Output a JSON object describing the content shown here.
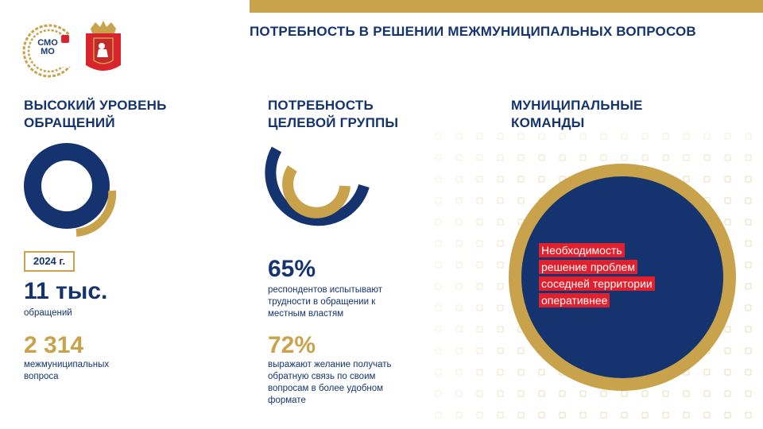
{
  "header": {
    "title": "ПОТРЕБНОСТЬ В РЕШЕНИИ МЕЖМУНИЦИПАЛЬНЫХ ВОПРОСОВ"
  },
  "logo": {
    "text": "СМО МО"
  },
  "colors": {
    "navy": "#15346f",
    "gold": "#c9a24c",
    "red": "#e0202c"
  },
  "col1": {
    "title_line1": "ВЫСОКИЙ УРОВЕНЬ",
    "title_line2": "ОБРАЩЕНИЙ",
    "year": "2024 г.",
    "value1": "11 тыс.",
    "label1": "обращений",
    "value2": "2 314",
    "label2_line1": "межмуниципальных",
    "label2_line2": "вопроса"
  },
  "col2": {
    "title_line1": "ПОТРЕБНОСТЬ",
    "title_line2": "ЦЕЛЕВОЙ ГРУППЫ",
    "value1": "65%",
    "label1_line1": "респондентов испытывают",
    "label1_line2": "трудности в обращении к",
    "label1_line3": "местным властям",
    "value2": "72%",
    "label2_line1": "выражают желание получать",
    "label2_line2": "обратную связь по своим",
    "label2_line3": "вопросам в более удобном",
    "label2_line4": "формате"
  },
  "col3": {
    "title_line1": "МУНИЦИПАЛЬНЫЕ",
    "title_line2": "КОМАНДЫ",
    "text_lines": [
      "Необходимость",
      "решение проблем",
      "соседней территории",
      "оперативнее"
    ]
  }
}
